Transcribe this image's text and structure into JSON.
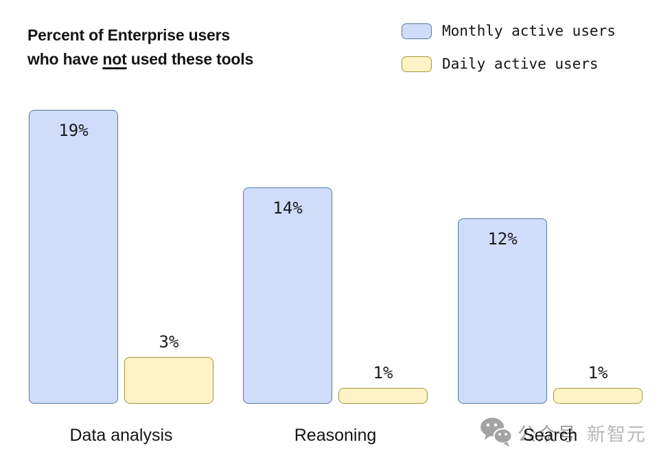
{
  "title": {
    "line1": "Percent of Enterprise users",
    "line2_prefix": "who have ",
    "line2_underlined": "not",
    "line2_suffix": " used these tools"
  },
  "legend": [
    {
      "label": "Monthly active users",
      "fill": "#cfddfb",
      "border": "#54779e"
    },
    {
      "label": "Daily active users",
      "fill": "#fdf3c6",
      "border": "#a9923c"
    }
  ],
  "chart_data": {
    "type": "bar",
    "title": "Percent of Enterprise users who have not used these tools",
    "categories": [
      "Data analysis",
      "Reasoning",
      "Search"
    ],
    "series": [
      {
        "name": "Monthly active users",
        "values": [
          19,
          14,
          12
        ],
        "fill": "#cfddfb",
        "border": "#54779e"
      },
      {
        "name": "Daily active users",
        "values": [
          3,
          1,
          1
        ],
        "fill": "#fdf3c6",
        "border": "#a9923c"
      }
    ],
    "value_labels": [
      [
        "19%",
        "3%"
      ],
      [
        "14%",
        "1%"
      ],
      [
        "12%",
        "1%"
      ]
    ],
    "unit": "%",
    "ylim": [
      0,
      19
    ],
    "grid": false,
    "axes_shown": false,
    "legend_position": "top-right"
  },
  "watermark": {
    "icon": "wechat-icon",
    "text1": "公众号",
    "text2": "新智元",
    "icon_color": "#a3a3a3"
  }
}
